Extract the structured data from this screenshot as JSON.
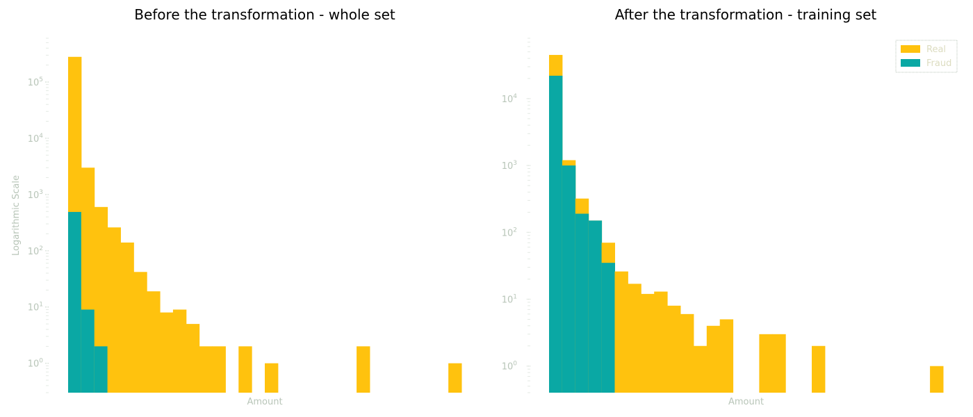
{
  "colors": {
    "real": "#ffc20e",
    "fraud": "#0aa8a4",
    "axis_text": "#b8c5b8",
    "tick_mark": "#c8d4c8",
    "legend_text": "#dcdcc0",
    "legend_border": "#b8c5b8"
  },
  "chart_data": [
    {
      "type": "bar",
      "title": "Before the transformation - whole set",
      "xlabel": "Amount",
      "ylabel": "Logarithmic Scale",
      "yscale": "log",
      "ylim": [
        0.3,
        600000
      ],
      "y_ticks": [
        {
          "value": 1,
          "base": "10",
          "exp": "0"
        },
        {
          "value": 10,
          "base": "10",
          "exp": "1"
        },
        {
          "value": 100,
          "base": "10",
          "exp": "2"
        },
        {
          "value": 1000,
          "base": "10",
          "exp": "3"
        },
        {
          "value": 10000,
          "base": "10",
          "exp": "4"
        },
        {
          "value": 100000,
          "base": "10",
          "exp": "5"
        }
      ],
      "bins": 30,
      "grid": false,
      "legend": null,
      "series": [
        {
          "name": "Real",
          "values": [
            280000,
            3000,
            600,
            260,
            140,
            42,
            19,
            8,
            9,
            5,
            2,
            2,
            0,
            2,
            0,
            1,
            0,
            0,
            0,
            0,
            0,
            0,
            2,
            0,
            0,
            0,
            0,
            0,
            0,
            1
          ]
        },
        {
          "name": "Fraud",
          "values": [
            490,
            9,
            2,
            0,
            0,
            0,
            0,
            0,
            0,
            0,
            0,
            0,
            0,
            0,
            0,
            0,
            0,
            0,
            0,
            0,
            0,
            0,
            0,
            0,
            0,
            0,
            0,
            0,
            0,
            0
          ]
        }
      ]
    },
    {
      "type": "bar",
      "title": "After the transformation - training set",
      "xlabel": "Amount",
      "ylabel": "",
      "yscale": "log",
      "ylim": [
        0.4,
        80000
      ],
      "y_ticks": [
        {
          "value": 1,
          "base": "10",
          "exp": "0"
        },
        {
          "value": 10,
          "base": "10",
          "exp": "1"
        },
        {
          "value": 100,
          "base": "10",
          "exp": "2"
        },
        {
          "value": 1000,
          "base": "10",
          "exp": "3"
        },
        {
          "value": 10000,
          "base": "10",
          "exp": "4"
        }
      ],
      "bins": 30,
      "grid": false,
      "legend": {
        "position": "top-right",
        "entries": [
          "Real",
          "Fraud"
        ]
      },
      "series": [
        {
          "name": "Real",
          "values": [
            45000,
            1200,
            320,
            150,
            70,
            26,
            17,
            12,
            13,
            8,
            6,
            2,
            4,
            5,
            0,
            0,
            3,
            3,
            0,
            0,
            2,
            0,
            0,
            0,
            0,
            0,
            0,
            0,
            0,
            1
          ]
        },
        {
          "name": "Fraud",
          "values": [
            22000,
            1000,
            190,
            150,
            35,
            0,
            0,
            0,
            0,
            0,
            0,
            0,
            0,
            0,
            0,
            0,
            0,
            0,
            0,
            0,
            0,
            0,
            0,
            0,
            0,
            0,
            0,
            0,
            0,
            0
          ]
        }
      ]
    }
  ]
}
